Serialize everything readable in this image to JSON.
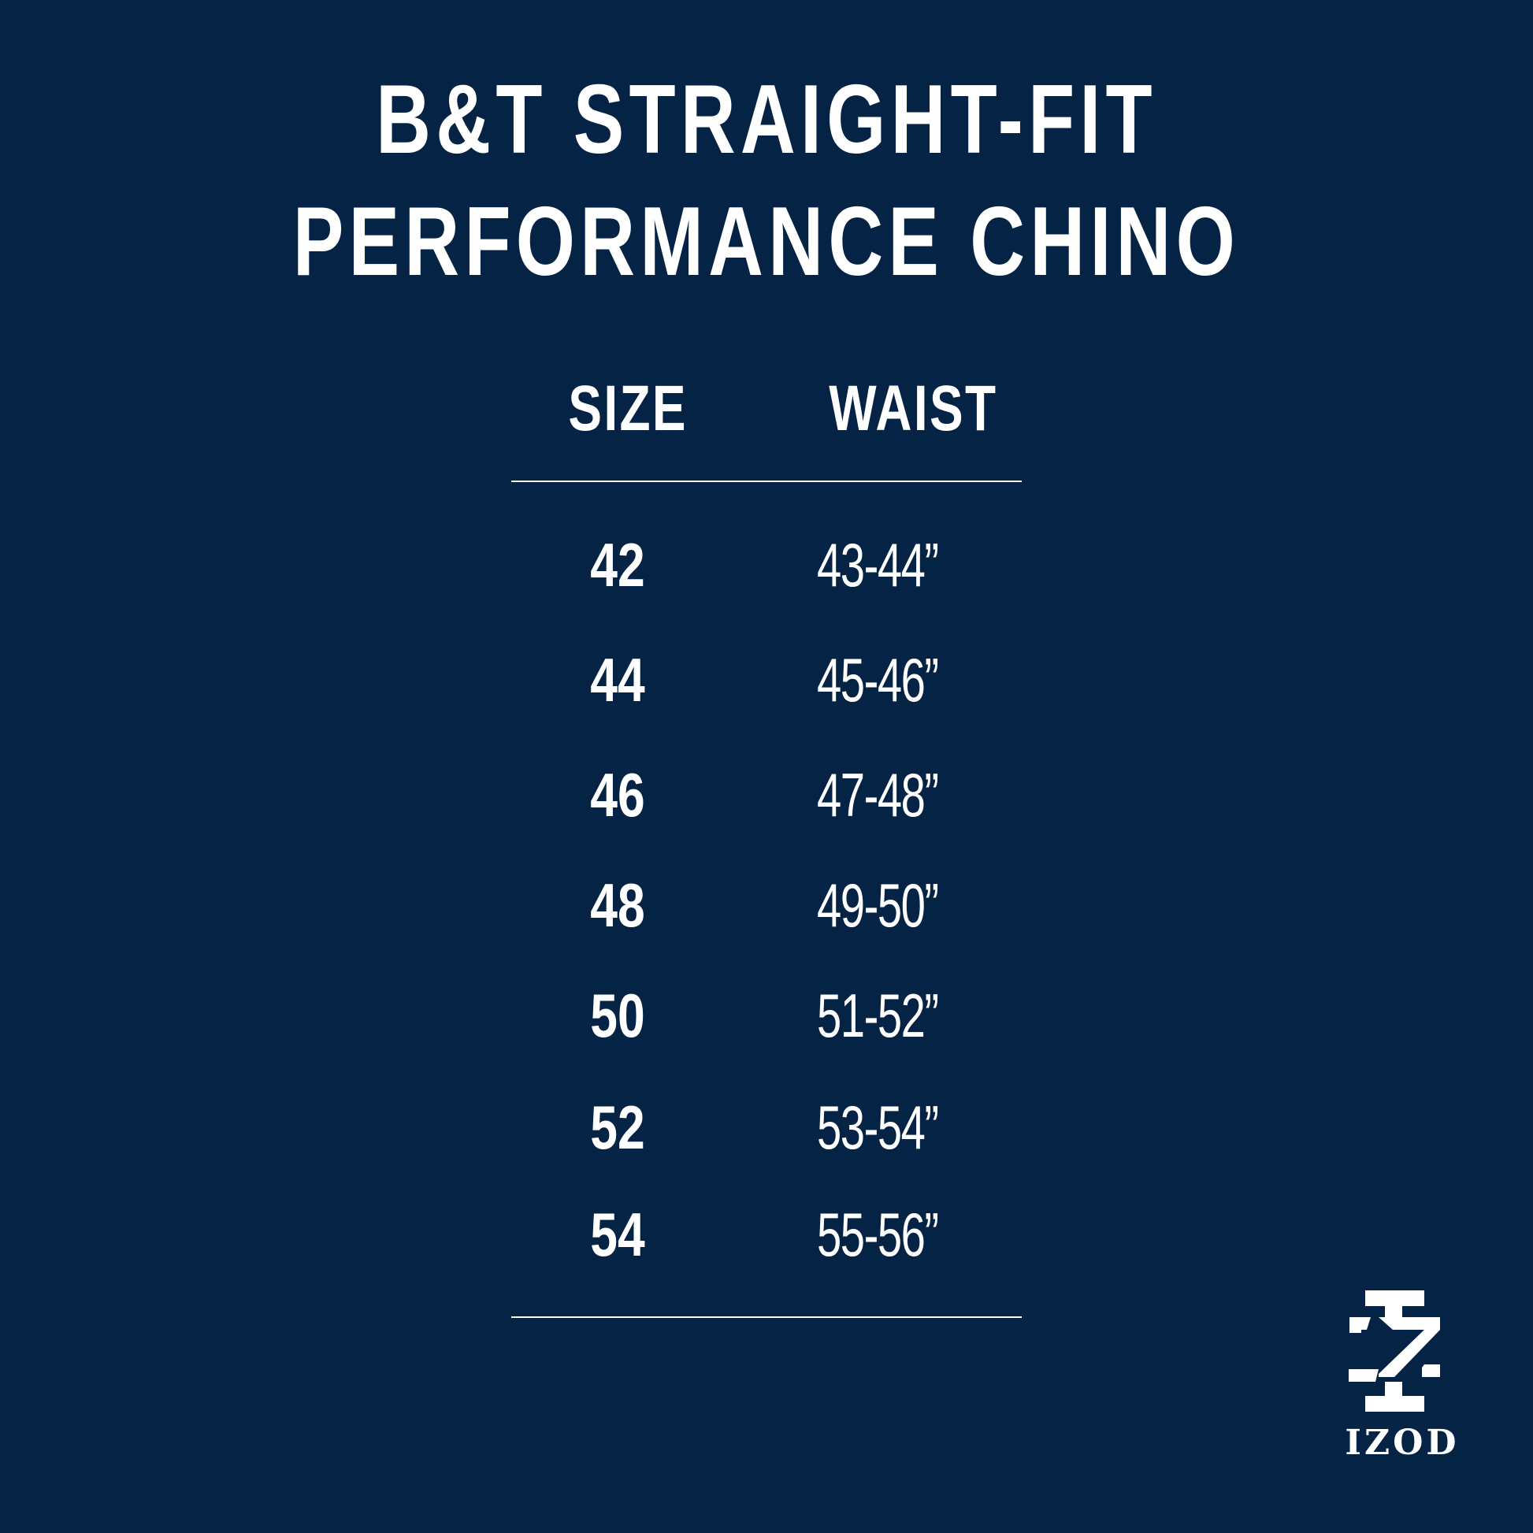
{
  "title": {
    "line1": "B&T STRAIGHT-FIT",
    "line2": "PERFORMANCE CHINO"
  },
  "table": {
    "headers": {
      "size": "SIZE",
      "waist": "WAIST"
    },
    "rows": [
      {
        "size": "42",
        "waist": "43-44”"
      },
      {
        "size": "44",
        "waist": "45-46”"
      },
      {
        "size": "46",
        "waist": "47-48”"
      },
      {
        "size": "48",
        "waist": "49-50”"
      },
      {
        "size": "50",
        "waist": "51-52”"
      },
      {
        "size": "52",
        "waist": "53-54”"
      },
      {
        "size": "54",
        "waist": "55-56”"
      }
    ]
  },
  "logo": {
    "text": "IZOD"
  },
  "colors": {
    "background": "#052345",
    "text": "#ffffff"
  }
}
